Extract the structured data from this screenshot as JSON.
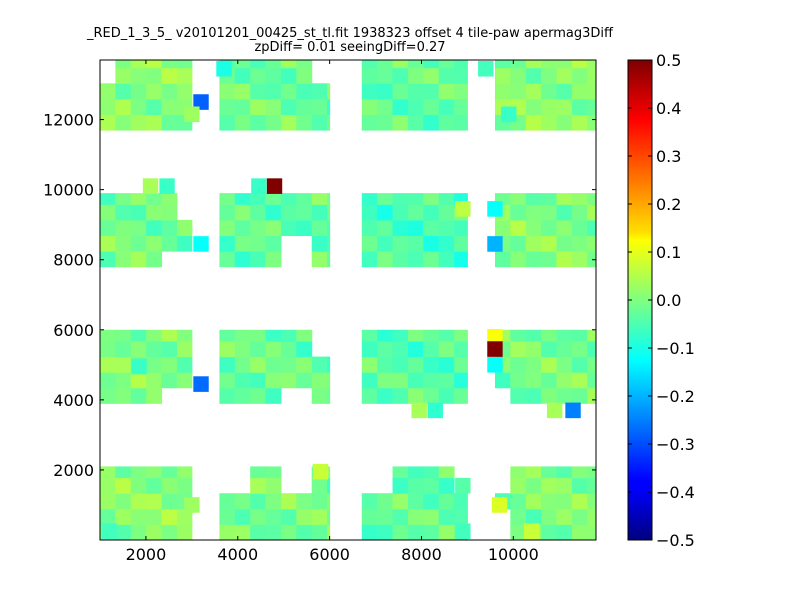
{
  "chart_data": {
    "type": "heatmap",
    "title_line1": "_RED_1_3_5_ v20101201_00425_st_tl.fit 1938323 offset 4 tile-paw apermag3Diff",
    "title_line2": "zpDiff= 0.01 seeingDiff=0.27",
    "xlim": [
      1000,
      11800
    ],
    "ylim": [
      0,
      13700
    ],
    "x_ticks": [
      2000,
      4000,
      6000,
      8000,
      10000
    ],
    "x_tick_labels": [
      "2000",
      "4000",
      "6000",
      "8000",
      "10000"
    ],
    "y_ticks": [
      2000,
      4000,
      6000,
      8000,
      10000,
      12000
    ],
    "y_tick_labels": [
      "2000",
      "4000",
      "6000",
      "8000",
      "10000",
      "12000"
    ],
    "colorbar": {
      "colormap": "jet",
      "vmin": -0.5,
      "vmax": 0.5,
      "ticks": [
        0.5,
        0.4,
        0.3,
        0.2,
        0.1,
        0.0,
        -0.1,
        -0.2,
        -0.3,
        -0.4,
        -0.5
      ],
      "tick_labels": [
        "0.5",
        "0.4",
        "0.3",
        "0.2",
        "0.1",
        "0.0",
        "−0.1",
        "−0.2",
        "−0.3",
        "−0.4",
        "−0.5"
      ]
    },
    "cell_size": [
      335,
      445
    ],
    "x_bins": [
      [
        1000,
        3000
      ],
      [
        3600,
        6000
      ],
      [
        6700,
        9000
      ],
      [
        9600,
        11800
      ]
    ],
    "y_bins": [
      [
        0,
        2100
      ],
      [
        3900,
        6000
      ],
      [
        7800,
        9900
      ],
      [
        11700,
        13700
      ]
    ],
    "base_values": [
      [
        0.01,
        -0.01,
        -0.03,
        0.0
      ],
      [
        0.0,
        -0.02,
        -0.04,
        -0.01
      ],
      [
        -0.01,
        -0.03,
        -0.05,
        0.0
      ],
      [
        0.01,
        -0.02,
        -0.03,
        0.01
      ]
    ],
    "special_cells": [
      {
        "x": 3200,
        "y": 12500,
        "v": -0.28
      },
      {
        "x": 3000,
        "y": 12150,
        "v": 0.03
      },
      {
        "x": 3700,
        "y": 13450,
        "v": -0.1
      },
      {
        "x": 9400,
        "y": 13450,
        "v": -0.06
      },
      {
        "x": 9900,
        "y": 12150,
        "v": -0.07
      },
      {
        "x": 4800,
        "y": 10100,
        "v": 0.5
      },
      {
        "x": 4460,
        "y": 10100,
        "v": -0.07
      },
      {
        "x": 2100,
        "y": 10100,
        "v": 0.04
      },
      {
        "x": 2460,
        "y": 10100,
        "v": -0.07
      },
      {
        "x": 3200,
        "y": 8450,
        "v": -0.12
      },
      {
        "x": 9600,
        "y": 8450,
        "v": -0.2
      },
      {
        "x": 9600,
        "y": 9450,
        "v": -0.12
      },
      {
        "x": 8900,
        "y": 9450,
        "v": 0.06
      },
      {
        "x": 9600,
        "y": 5800,
        "v": 0.12
      },
      {
        "x": 9600,
        "y": 5450,
        "v": 0.5
      },
      {
        "x": 9600,
        "y": 5000,
        "v": -0.12
      },
      {
        "x": 3200,
        "y": 4450,
        "v": -0.27
      },
      {
        "x": 1850,
        "y": 4950,
        "v": -0.07
      },
      {
        "x": 8300,
        "y": 3700,
        "v": -0.08
      },
      {
        "x": 7950,
        "y": 3700,
        "v": 0.04
      },
      {
        "x": 11300,
        "y": 3700,
        "v": -0.25
      },
      {
        "x": 10900,
        "y": 3700,
        "v": 0.04
      },
      {
        "x": 5800,
        "y": 1950,
        "v": 0.07
      },
      {
        "x": 8900,
        "y": 1550,
        "v": -0.04
      },
      {
        "x": 8900,
        "y": 250,
        "v": -0.06
      },
      {
        "x": 9700,
        "y": 1000,
        "v": 0.09
      },
      {
        "x": 1200,
        "y": 250,
        "v": -0.06
      },
      {
        "x": 3000,
        "y": 1000,
        "v": 0.03
      },
      {
        "x": 10400,
        "y": 250,
        "v": 0.07
      }
    ],
    "missing_cells": [
      {
        "x": 3000,
        "y": 9450
      },
      {
        "x": 5200,
        "y": 8450
      },
      {
        "x": 2800,
        "y": 7950
      },
      {
        "x": 1100,
        "y": 13450
      },
      {
        "x": 6000,
        "y": 13450
      },
      {
        "x": 6000,
        "y": 5650
      },
      {
        "x": 2800,
        "y": 3950
      },
      {
        "x": 5300,
        "y": 3950
      },
      {
        "x": 9600,
        "y": 3950
      },
      {
        "x": 4000,
        "y": 1950
      },
      {
        "x": 5400,
        "y": 1950
      },
      {
        "x": 7000,
        "y": 1950
      },
      {
        "x": 9100,
        "y": 1950
      },
      {
        "x": 9700,
        "y": 1950
      },
      {
        "x": 9600,
        "y": 250
      }
    ]
  }
}
